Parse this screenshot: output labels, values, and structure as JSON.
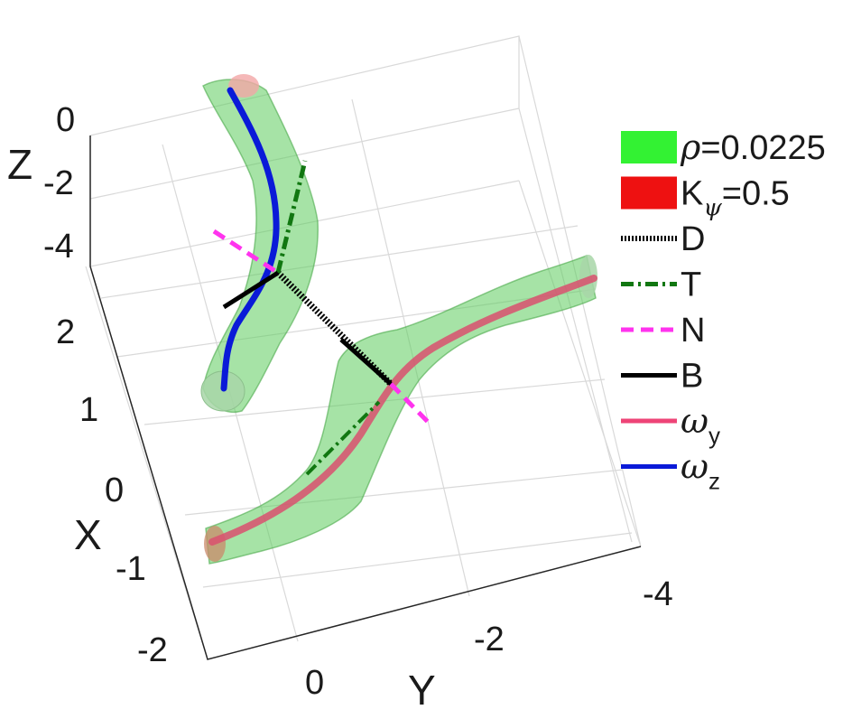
{
  "chart_data": {
    "type": "line",
    "axes": {
      "x": {
        "label": "X",
        "ticks": [
          "2",
          "1",
          "0",
          "-1",
          "-2"
        ]
      },
      "y": {
        "label": "Y",
        "ticks": [
          "0",
          "-2",
          "-4"
        ]
      },
      "z": {
        "label": "Z",
        "ticks": [
          "0",
          "-2",
          "-4"
        ]
      }
    },
    "grid": true,
    "legend_position": "right",
    "legend": [
      {
        "id": "rho",
        "sym": "ρ",
        "text": "=0.0225",
        "style": "patch",
        "color": "#33f233"
      },
      {
        "id": "kpsi",
        "main": "K",
        "sub": "ψ",
        "text": "=0.5",
        "style": "patch",
        "color": "#ee1111"
      },
      {
        "id": "D",
        "text": "D",
        "style": "dotted",
        "color": "#000000"
      },
      {
        "id": "T",
        "text": "T",
        "style": "dashdot",
        "color": "#117711"
      },
      {
        "id": "N",
        "text": "N",
        "style": "dashed",
        "color": "#ff33ee"
      },
      {
        "id": "B",
        "text": "B",
        "style": "solid",
        "color": "#000000"
      },
      {
        "id": "wy",
        "sym": "ω",
        "sub": "y",
        "style": "solid",
        "color": "#ee4477"
      },
      {
        "id": "wz",
        "sym": "ω",
        "sub": "z",
        "style": "solid",
        "color": "#0a1ad8"
      }
    ]
  }
}
